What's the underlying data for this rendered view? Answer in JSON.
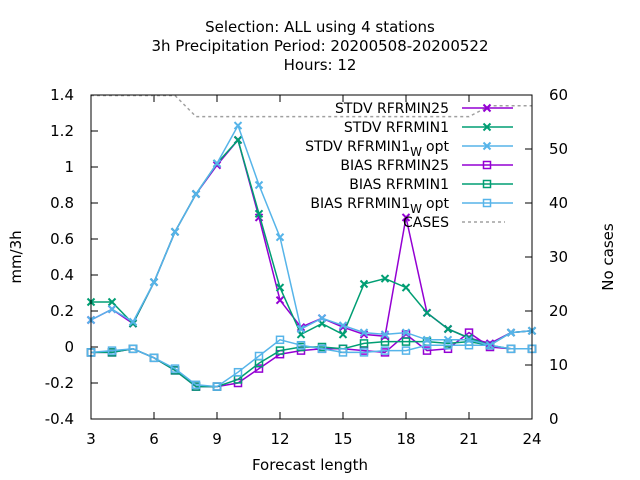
{
  "chart_data": {
    "type": "line",
    "title_lines": [
      "Selection: ALL using     4 stations",
      "3h Precipitation   Period: 20200508-20200522",
      "Hours:  12"
    ],
    "xlabel": "Forecast length",
    "ylabel": "mm/3h",
    "y2label": "No cases",
    "xlim": [
      3,
      24
    ],
    "ylim": [
      -0.4,
      1.4
    ],
    "y2lim": [
      0,
      60
    ],
    "xticks": [
      "3",
      "6",
      "9",
      "12",
      "15",
      "18",
      "21",
      "24"
    ],
    "yticks": [
      "-0.4",
      "-0.2",
      "0",
      "0.2",
      "0.4",
      "0.6",
      "0.8",
      "1",
      "1.2",
      "1.4"
    ],
    "y2ticks": [
      "0",
      "10",
      "20",
      "30",
      "40",
      "50",
      "60"
    ],
    "grid": false,
    "legend_position": "top-right",
    "x": [
      3,
      4,
      5,
      6,
      7,
      8,
      9,
      10,
      11,
      12,
      13,
      14,
      15,
      16,
      17,
      18,
      19,
      20,
      21,
      22,
      23,
      24
    ],
    "series": [
      {
        "name": "STDV RFRMIN25",
        "legend_main": "STDV RFRMIN25",
        "legend_sub": "",
        "legend_tail": "",
        "color": "#9400d3",
        "marker": "x",
        "axis": "y1",
        "values": [
          0.15,
          0.21,
          0.13,
          0.36,
          0.64,
          0.85,
          1.01,
          1.15,
          0.72,
          0.26,
          0.11,
          0.16,
          0.11,
          0.07,
          0.06,
          0.72,
          0.19,
          0.1,
          0.05,
          0.02,
          0.08,
          0.09
        ]
      },
      {
        "name": "STDV RFRMIN1",
        "legend_main": "STDV RFRMIN1",
        "legend_sub": "",
        "legend_tail": "",
        "color": "#009e73",
        "marker": "x",
        "axis": "y1",
        "values": [
          0.25,
          0.25,
          0.13,
          0.36,
          0.64,
          0.85,
          1.02,
          1.15,
          0.74,
          0.33,
          0.07,
          0.13,
          0.07,
          0.35,
          0.38,
          0.33,
          0.19,
          0.1,
          0.05,
          0.01,
          0.08,
          0.09
        ]
      },
      {
        "name": "STDV RFRMIN1 W opt",
        "legend_main": "STDV RFRMIN1",
        "legend_sub": "W",
        "legend_tail": "opt",
        "color": "#56b4e9",
        "marker": "x",
        "axis": "y1",
        "values": [
          0.15,
          0.21,
          0.14,
          0.36,
          0.64,
          0.85,
          1.02,
          1.23,
          0.9,
          0.61,
          0.1,
          0.16,
          0.12,
          0.08,
          0.07,
          0.08,
          0.04,
          0.04,
          0.04,
          0.01,
          0.08,
          0.09
        ]
      },
      {
        "name": "BIAS RFRMIN25",
        "legend_main": "BIAS RFRMIN25",
        "legend_sub": "",
        "legend_tail": "",
        "color": "#9400d3",
        "marker": "square",
        "axis": "y1",
        "values": [
          -0.03,
          -0.03,
          -0.01,
          -0.06,
          -0.13,
          -0.22,
          -0.22,
          -0.2,
          -0.12,
          -0.04,
          -0.02,
          -0.01,
          -0.01,
          -0.02,
          -0.03,
          0.07,
          -0.02,
          -0.01,
          0.08,
          0.0,
          -0.01,
          -0.01
        ]
      },
      {
        "name": "BIAS RFRMIN1",
        "legend_main": "BIAS RFRMIN1",
        "legend_sub": "",
        "legend_tail": "",
        "color": "#009e73",
        "marker": "square",
        "axis": "y1",
        "values": [
          -0.03,
          -0.03,
          -0.01,
          -0.06,
          -0.13,
          -0.22,
          -0.22,
          -0.18,
          -0.09,
          -0.02,
          0.0,
          0.0,
          -0.01,
          0.02,
          0.03,
          0.03,
          0.03,
          0.02,
          0.03,
          0.01,
          -0.01,
          -0.01
        ]
      },
      {
        "name": "BIAS RFRMIN1 W opt",
        "legend_main": "BIAS RFRMIN1",
        "legend_sub": "W",
        "legend_tail": "opt",
        "color": "#56b4e9",
        "marker": "square",
        "axis": "y1",
        "values": [
          -0.03,
          -0.02,
          -0.01,
          -0.06,
          -0.12,
          -0.21,
          -0.22,
          -0.14,
          -0.05,
          0.04,
          0.01,
          -0.01,
          -0.03,
          -0.03,
          -0.02,
          -0.02,
          0.01,
          0.01,
          0.01,
          0.01,
          -0.01,
          -0.01
        ]
      },
      {
        "name": "CASES",
        "legend_main": "CASES",
        "legend_sub": "",
        "legend_tail": "",
        "color": "#a0a0a0",
        "marker": "none",
        "dashed": true,
        "axis": "y2",
        "values": [
          60,
          60,
          60,
          60,
          60,
          56,
          56,
          56,
          56,
          56,
          56,
          56,
          56,
          56,
          56,
          56,
          56,
          56,
          56,
          58,
          58,
          58
        ]
      }
    ]
  }
}
